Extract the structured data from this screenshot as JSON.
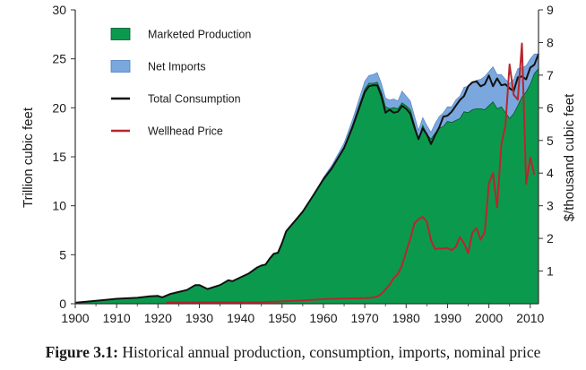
{
  "chart_data": {
    "type": "area",
    "title": "",
    "xlabel": "",
    "ylabel": "Trillion cubic feet",
    "y2label": "$/thousand cubic feet",
    "xlim": [
      1900,
      2012
    ],
    "ylim": [
      0,
      30
    ],
    "y2lim": [
      0,
      9
    ],
    "xticks": [
      1900,
      1910,
      1920,
      1930,
      1940,
      1950,
      1960,
      1970,
      1980,
      1990,
      2000,
      2010
    ],
    "yticks": [
      0,
      5,
      10,
      15,
      20,
      25,
      30
    ],
    "y2ticks": [
      1,
      2,
      3,
      4,
      5,
      6,
      7,
      8,
      9
    ],
    "legend": {
      "placement": "top-left",
      "entries": [
        "Marketed Production",
        "Net Imports",
        "Total Consumption",
        "Wellhead Price"
      ]
    },
    "series": [
      {
        "name": "Marketed Production",
        "color": "#0b9a4d",
        "kind": "area",
        "points": [
          [
            1900,
            0.1
          ],
          [
            1905,
            0.3
          ],
          [
            1910,
            0.5
          ],
          [
            1915,
            0.6
          ],
          [
            1918,
            0.75
          ],
          [
            1920,
            0.8
          ],
          [
            1921,
            0.65
          ],
          [
            1923,
            1.0
          ],
          [
            1925,
            1.2
          ],
          [
            1927,
            1.4
          ],
          [
            1929,
            1.9
          ],
          [
            1930,
            1.9
          ],
          [
            1932,
            1.5
          ],
          [
            1935,
            1.9
          ],
          [
            1937,
            2.4
          ],
          [
            1938,
            2.3
          ],
          [
            1940,
            2.7
          ],
          [
            1942,
            3.1
          ],
          [
            1944,
            3.7
          ],
          [
            1945,
            3.9
          ],
          [
            1946,
            4.0
          ],
          [
            1947,
            4.6
          ],
          [
            1948,
            5.1
          ],
          [
            1949,
            5.2
          ],
          [
            1950,
            6.2
          ],
          [
            1951,
            7.4
          ],
          [
            1952,
            7.9
          ],
          [
            1953,
            8.4
          ],
          [
            1955,
            9.4
          ],
          [
            1957,
            10.7
          ],
          [
            1960,
            12.8
          ],
          [
            1962,
            13.9
          ],
          [
            1965,
            16.0
          ],
          [
            1967,
            18.2
          ],
          [
            1970,
            21.9
          ],
          [
            1971,
            22.5
          ],
          [
            1972,
            22.5
          ],
          [
            1973,
            22.6
          ],
          [
            1974,
            21.6
          ],
          [
            1975,
            20.1
          ],
          [
            1976,
            19.9
          ],
          [
            1977,
            20.0
          ],
          [
            1978,
            19.9
          ],
          [
            1979,
            20.5
          ],
          [
            1980,
            20.2
          ],
          [
            1981,
            19.8
          ],
          [
            1982,
            18.3
          ],
          [
            1983,
            16.8
          ],
          [
            1984,
            18.2
          ],
          [
            1985,
            17.3
          ],
          [
            1986,
            16.8
          ],
          [
            1987,
            17.4
          ],
          [
            1988,
            17.9
          ],
          [
            1989,
            18.1
          ],
          [
            1990,
            18.6
          ],
          [
            1991,
            18.5
          ],
          [
            1992,
            18.7
          ],
          [
            1993,
            18.9
          ],
          [
            1994,
            19.6
          ],
          [
            1995,
            19.5
          ],
          [
            1996,
            19.8
          ],
          [
            1997,
            19.9
          ],
          [
            1998,
            19.9
          ],
          [
            1999,
            19.8
          ],
          [
            2000,
            20.2
          ],
          [
            2001,
            20.6
          ],
          [
            2002,
            19.9
          ],
          [
            2003,
            20.1
          ],
          [
            2004,
            19.5
          ],
          [
            2005,
            18.9
          ],
          [
            2006,
            19.4
          ],
          [
            2007,
            20.2
          ],
          [
            2008,
            21.1
          ],
          [
            2009,
            21.6
          ],
          [
            2010,
            22.4
          ],
          [
            2011,
            23.5
          ],
          [
            2012,
            24.0
          ]
        ]
      },
      {
        "name": "Net Imports",
        "color": "#7aa7dd",
        "kind": "stacked-area",
        "points": [
          [
            1900,
            0
          ],
          [
            1957,
            0.0
          ],
          [
            1960,
            0.1
          ],
          [
            1965,
            0.4
          ],
          [
            1970,
            0.8
          ],
          [
            1971,
            0.8
          ],
          [
            1972,
            0.9
          ],
          [
            1973,
            1.0
          ],
          [
            1974,
            0.9
          ],
          [
            1975,
            0.9
          ],
          [
            1976,
            0.9
          ],
          [
            1977,
            0.9
          ],
          [
            1978,
            0.8
          ],
          [
            1979,
            1.2
          ],
          [
            1980,
            1.0
          ],
          [
            1981,
            0.9
          ],
          [
            1982,
            0.9
          ],
          [
            1983,
            0.9
          ],
          [
            1984,
            0.8
          ],
          [
            1985,
            0.9
          ],
          [
            1986,
            0.7
          ],
          [
            1987,
            1.0
          ],
          [
            1988,
            1.2
          ],
          [
            1989,
            1.4
          ],
          [
            1990,
            1.5
          ],
          [
            1991,
            1.6
          ],
          [
            1992,
            2.1
          ],
          [
            1993,
            2.3
          ],
          [
            1994,
            2.5
          ],
          [
            1995,
            2.7
          ],
          [
            1996,
            2.8
          ],
          [
            1997,
            2.9
          ],
          [
            1998,
            3.0
          ],
          [
            1999,
            3.4
          ],
          [
            2000,
            3.5
          ],
          [
            2001,
            3.6
          ],
          [
            2002,
            3.5
          ],
          [
            2003,
            3.3
          ],
          [
            2004,
            3.4
          ],
          [
            2005,
            3.6
          ],
          [
            2006,
            3.5
          ],
          [
            2007,
            3.8
          ],
          [
            2008,
            3.0
          ],
          [
            2009,
            2.7
          ],
          [
            2010,
            2.6
          ],
          [
            2011,
            2.0
          ],
          [
            2012,
            1.5
          ]
        ]
      },
      {
        "name": "Total Consumption",
        "color": "#111111",
        "kind": "line",
        "points": [
          [
            1900,
            0.1
          ],
          [
            1905,
            0.3
          ],
          [
            1910,
            0.5
          ],
          [
            1915,
            0.6
          ],
          [
            1918,
            0.75
          ],
          [
            1920,
            0.8
          ],
          [
            1921,
            0.65
          ],
          [
            1923,
            1.0
          ],
          [
            1925,
            1.2
          ],
          [
            1927,
            1.4
          ],
          [
            1929,
            1.9
          ],
          [
            1930,
            1.9
          ],
          [
            1932,
            1.5
          ],
          [
            1935,
            1.9
          ],
          [
            1937,
            2.4
          ],
          [
            1938,
            2.3
          ],
          [
            1940,
            2.7
          ],
          [
            1942,
            3.1
          ],
          [
            1944,
            3.7
          ],
          [
            1945,
            3.9
          ],
          [
            1946,
            4.0
          ],
          [
            1947,
            4.6
          ],
          [
            1948,
            5.1
          ],
          [
            1949,
            5.2
          ],
          [
            1950,
            6.2
          ],
          [
            1951,
            7.4
          ],
          [
            1952,
            7.9
          ],
          [
            1953,
            8.4
          ],
          [
            1955,
            9.4
          ],
          [
            1957,
            10.7
          ],
          [
            1960,
            12.7
          ],
          [
            1962,
            13.8
          ],
          [
            1965,
            15.9
          ],
          [
            1967,
            18.0
          ],
          [
            1970,
            21.6
          ],
          [
            1971,
            22.2
          ],
          [
            1972,
            22.3
          ],
          [
            1973,
            22.3
          ],
          [
            1974,
            21.2
          ],
          [
            1975,
            19.5
          ],
          [
            1976,
            19.8
          ],
          [
            1977,
            19.5
          ],
          [
            1978,
            19.6
          ],
          [
            1979,
            20.2
          ],
          [
            1980,
            19.9
          ],
          [
            1981,
            19.4
          ],
          [
            1982,
            18.0
          ],
          [
            1983,
            16.8
          ],
          [
            1984,
            17.9
          ],
          [
            1985,
            17.3
          ],
          [
            1986,
            16.3
          ],
          [
            1987,
            17.2
          ],
          [
            1988,
            18.0
          ],
          [
            1989,
            19.1
          ],
          [
            1990,
            19.2
          ],
          [
            1991,
            19.6
          ],
          [
            1992,
            20.2
          ],
          [
            1993,
            20.8
          ],
          [
            1994,
            21.2
          ],
          [
            1995,
            22.2
          ],
          [
            1996,
            22.6
          ],
          [
            1997,
            22.7
          ],
          [
            1998,
            22.2
          ],
          [
            1999,
            22.4
          ],
          [
            2000,
            23.3
          ],
          [
            2001,
            22.2
          ],
          [
            2002,
            23.0
          ],
          [
            2003,
            22.3
          ],
          [
            2004,
            22.4
          ],
          [
            2005,
            22.0
          ],
          [
            2006,
            21.7
          ],
          [
            2007,
            23.1
          ],
          [
            2008,
            23.2
          ],
          [
            2009,
            22.9
          ],
          [
            2010,
            24.1
          ],
          [
            2011,
            24.4
          ],
          [
            2012,
            25.5
          ]
        ]
      },
      {
        "name": "Wellhead Price",
        "color": "#b8262d",
        "kind": "line",
        "axis": "right",
        "points": [
          [
            1922,
            0.04
          ],
          [
            1930,
            0.05
          ],
          [
            1940,
            0.05
          ],
          [
            1945,
            0.05
          ],
          [
            1950,
            0.07
          ],
          [
            1955,
            0.1
          ],
          [
            1960,
            0.14
          ],
          [
            1965,
            0.16
          ],
          [
            1970,
            0.17
          ],
          [
            1972,
            0.19
          ],
          [
            1973,
            0.22
          ],
          [
            1974,
            0.3
          ],
          [
            1975,
            0.44
          ],
          [
            1976,
            0.58
          ],
          [
            1977,
            0.79
          ],
          [
            1978,
            0.91
          ],
          [
            1979,
            1.18
          ],
          [
            1980,
            1.59
          ],
          [
            1981,
            1.98
          ],
          [
            1982,
            2.46
          ],
          [
            1983,
            2.59
          ],
          [
            1984,
            2.66
          ],
          [
            1985,
            2.51
          ],
          [
            1986,
            1.94
          ],
          [
            1987,
            1.67
          ],
          [
            1988,
            1.69
          ],
          [
            1989,
            1.69
          ],
          [
            1990,
            1.71
          ],
          [
            1991,
            1.64
          ],
          [
            1992,
            1.74
          ],
          [
            1993,
            2.04
          ],
          [
            1994,
            1.85
          ],
          [
            1995,
            1.55
          ],
          [
            1996,
            2.17
          ],
          [
            1997,
            2.32
          ],
          [
            1998,
            1.96
          ],
          [
            1999,
            2.19
          ],
          [
            2000,
            3.68
          ],
          [
            2001,
            4.0
          ],
          [
            2002,
            2.95
          ],
          [
            2003,
            4.88
          ],
          [
            2004,
            5.46
          ],
          [
            2005,
            7.33
          ],
          [
            2006,
            6.4
          ],
          [
            2007,
            6.25
          ],
          [
            2008,
            7.97
          ],
          [
            2009,
            3.67
          ],
          [
            2010,
            4.48
          ],
          [
            2011,
            3.95
          ]
        ]
      }
    ]
  },
  "caption": {
    "label": "Figure 3.1:",
    "text": "Historical annual production, consumption, imports, nominal price"
  }
}
